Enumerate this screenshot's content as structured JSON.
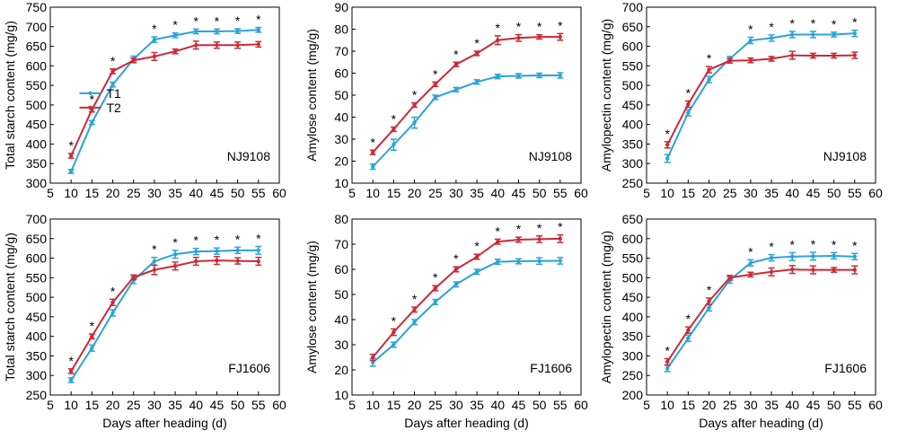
{
  "figure": {
    "colors": {
      "T1": "#2aa3da",
      "T2": "#cc2a36",
      "axis": "#000000"
    },
    "legend": {
      "entries": [
        "T1",
        "T2"
      ],
      "placement": "panel 1, middle-left"
    }
  },
  "chart_data": [
    {
      "type": "line",
      "ylabel": "Total starch content (mg/g)",
      "xlabel": "",
      "label": "NJ9108",
      "xlim": [
        5,
        60
      ],
      "ylim": [
        300,
        750
      ],
      "xticks": [
        5,
        10,
        15,
        20,
        25,
        30,
        35,
        40,
        45,
        50,
        55,
        60
      ],
      "yticks": [
        300,
        350,
        400,
        450,
        500,
        550,
        600,
        650,
        700,
        750
      ],
      "x": [
        10,
        15,
        20,
        25,
        30,
        35,
        40,
        45,
        50,
        55
      ],
      "series": [
        {
          "name": "T1",
          "values": [
            330,
            455,
            552,
            617,
            667,
            678,
            688,
            688,
            689,
            692
          ],
          "errors": [
            5,
            5,
            6,
            8,
            7,
            6,
            6,
            6,
            6,
            6
          ]
        },
        {
          "name": "T2",
          "values": [
            370,
            488,
            586,
            614,
            624,
            637,
            653,
            653,
            653,
            655
          ],
          "errors": [
            6,
            6,
            6,
            6,
            10,
            6,
            10,
            8,
            8,
            7
          ]
        }
      ],
      "significance": [
        "*",
        "*",
        "*",
        "",
        "*",
        "*",
        "*",
        "*",
        "*",
        "*"
      ]
    },
    {
      "type": "line",
      "ylabel": "Amylose content (mg/g)",
      "xlabel": "",
      "label": "NJ9108",
      "xlim": [
        5,
        60
      ],
      "ylim": [
        10,
        90
      ],
      "xticks": [
        5,
        10,
        15,
        20,
        25,
        30,
        35,
        40,
        45,
        50,
        55,
        60
      ],
      "yticks": [
        10,
        20,
        30,
        40,
        50,
        60,
        70,
        80,
        90
      ],
      "x": [
        10,
        15,
        20,
        25,
        30,
        35,
        40,
        45,
        50,
        55
      ],
      "series": [
        {
          "name": "T1",
          "values": [
            17.5,
            27.5,
            37.5,
            49,
            52.5,
            56,
            58.5,
            58.8,
            59,
            59
          ],
          "errors": [
            1.2,
            2.5,
            2.5,
            1,
            1,
            1,
            1,
            1,
            1,
            1.2
          ]
        },
        {
          "name": "T2",
          "values": [
            24,
            34.5,
            45.5,
            55,
            64,
            69,
            75,
            76,
            76.5,
            76.5
          ],
          "errors": [
            1,
            1,
            1,
            1,
            1,
            1,
            2,
            1.5,
            1,
            1.5
          ]
        }
      ],
      "significance": [
        "*",
        "*",
        "*",
        "*",
        "*",
        "*",
        "*",
        "*",
        "*",
        "*"
      ]
    },
    {
      "type": "line",
      "ylabel": "Amylopectin content (mg/g)",
      "xlabel": "",
      "label": "NJ9108",
      "xlim": [
        5,
        60
      ],
      "ylim": [
        250,
        700
      ],
      "xticks": [
        5,
        10,
        15,
        20,
        25,
        30,
        35,
        40,
        45,
        50,
        55,
        60
      ],
      "yticks": [
        250,
        300,
        350,
        400,
        450,
        500,
        550,
        600,
        650,
        700
      ],
      "x": [
        10,
        15,
        20,
        25,
        30,
        35,
        40,
        45,
        50,
        55
      ],
      "series": [
        {
          "name": "T1",
          "values": [
            313,
            430,
            515,
            568,
            615,
            621,
            630,
            630,
            630,
            633
          ],
          "errors": [
            10,
            8,
            8,
            6,
            8,
            8,
            8,
            8,
            6,
            8
          ]
        },
        {
          "name": "T2",
          "values": [
            348,
            452,
            540,
            563,
            564,
            568,
            577,
            576,
            576,
            577
          ],
          "errors": [
            8,
            8,
            8,
            6,
            6,
            6,
            10,
            6,
            6,
            8
          ]
        }
      ],
      "significance": [
        "*",
        "*",
        "*",
        "",
        "*",
        "*",
        "*",
        "*",
        "*",
        "*"
      ]
    },
    {
      "type": "line",
      "ylabel": "Total starch content (mg/g)",
      "xlabel": "Days after heading (d)",
      "label": "FJ1606",
      "xlim": [
        5,
        60
      ],
      "ylim": [
        250,
        700
      ],
      "xticks": [
        5,
        10,
        15,
        20,
        25,
        30,
        35,
        40,
        45,
        50,
        55,
        60
      ],
      "yticks": [
        250,
        300,
        350,
        400,
        450,
        500,
        550,
        600,
        650,
        700
      ],
      "x": [
        10,
        15,
        20,
        25,
        30,
        35,
        40,
        45,
        50,
        55
      ],
      "series": [
        {
          "name": "T1",
          "values": [
            288,
            370,
            460,
            543,
            592,
            610,
            617,
            618,
            620,
            620
          ],
          "errors": [
            6,
            8,
            8,
            8,
            10,
            10,
            8,
            8,
            8,
            10
          ]
        },
        {
          "name": "T2",
          "values": [
            311,
            400,
            487,
            551,
            570,
            580,
            592,
            594,
            593,
            592
          ],
          "errors": [
            6,
            6,
            8,
            6,
            12,
            10,
            10,
            10,
            8,
            10
          ]
        }
      ],
      "significance": [
        "*",
        "*",
        "*",
        "",
        "*",
        "*",
        "*",
        "*",
        "*",
        "*"
      ]
    },
    {
      "type": "line",
      "ylabel": "Amylose content (mg/g)",
      "xlabel": "Days after heading (d)",
      "label": "FJ1606",
      "xlim": [
        5,
        60
      ],
      "ylim": [
        10,
        80
      ],
      "xticks": [
        5,
        10,
        15,
        20,
        25,
        30,
        35,
        40,
        45,
        50,
        55,
        60
      ],
      "yticks": [
        10,
        20,
        30,
        40,
        50,
        60,
        70,
        80
      ],
      "x": [
        10,
        15,
        20,
        25,
        30,
        35,
        40,
        45,
        50,
        55
      ],
      "series": [
        {
          "name": "T1",
          "values": [
            23,
            30,
            39,
            47,
            54,
            59,
            63,
            63.2,
            63.3,
            63.4
          ],
          "errors": [
            1.5,
            1,
            1,
            1,
            1,
            1,
            1,
            1,
            1.3,
            1.3
          ]
        },
        {
          "name": "T2",
          "values": [
            25,
            35,
            44,
            52.5,
            60,
            65,
            71,
            71.8,
            72,
            72.2
          ],
          "errors": [
            1.2,
            1.3,
            1,
            1,
            1,
            1,
            1,
            1,
            1.3,
            1.5
          ]
        }
      ],
      "significance": [
        "",
        "*",
        "*",
        "*",
        "*",
        "*",
        "*",
        "*",
        "*",
        "*"
      ]
    },
    {
      "type": "line",
      "ylabel": "Amylopectin content (mg/g)",
      "xlabel": "Days after heading (d)",
      "label": "FJ1606",
      "xlim": [
        5,
        60
      ],
      "ylim": [
        200,
        650
      ],
      "xticks": [
        5,
        10,
        15,
        20,
        25,
        30,
        35,
        40,
        45,
        50,
        55,
        60
      ],
      "yticks": [
        200,
        250,
        300,
        350,
        400,
        450,
        500,
        550,
        600,
        650
      ],
      "x": [
        10,
        15,
        20,
        25,
        30,
        35,
        40,
        45,
        50,
        55
      ],
      "series": [
        {
          "name": "T1",
          "values": [
            268,
            345,
            423,
            494,
            538,
            551,
            554,
            555,
            556,
            554
          ],
          "errors": [
            8,
            8,
            8,
            8,
            8,
            8,
            10,
            10,
            8,
            8
          ]
        },
        {
          "name": "T2",
          "values": [
            285,
            366,
            440,
            500,
            508,
            515,
            521,
            520,
            520,
            520
          ],
          "errors": [
            8,
            8,
            8,
            6,
            6,
            10,
            10,
            10,
            6,
            10
          ]
        }
      ],
      "significance": [
        "*",
        "*",
        "*",
        "",
        "*",
        "*",
        "*",
        "*",
        "*",
        "*"
      ]
    }
  ]
}
